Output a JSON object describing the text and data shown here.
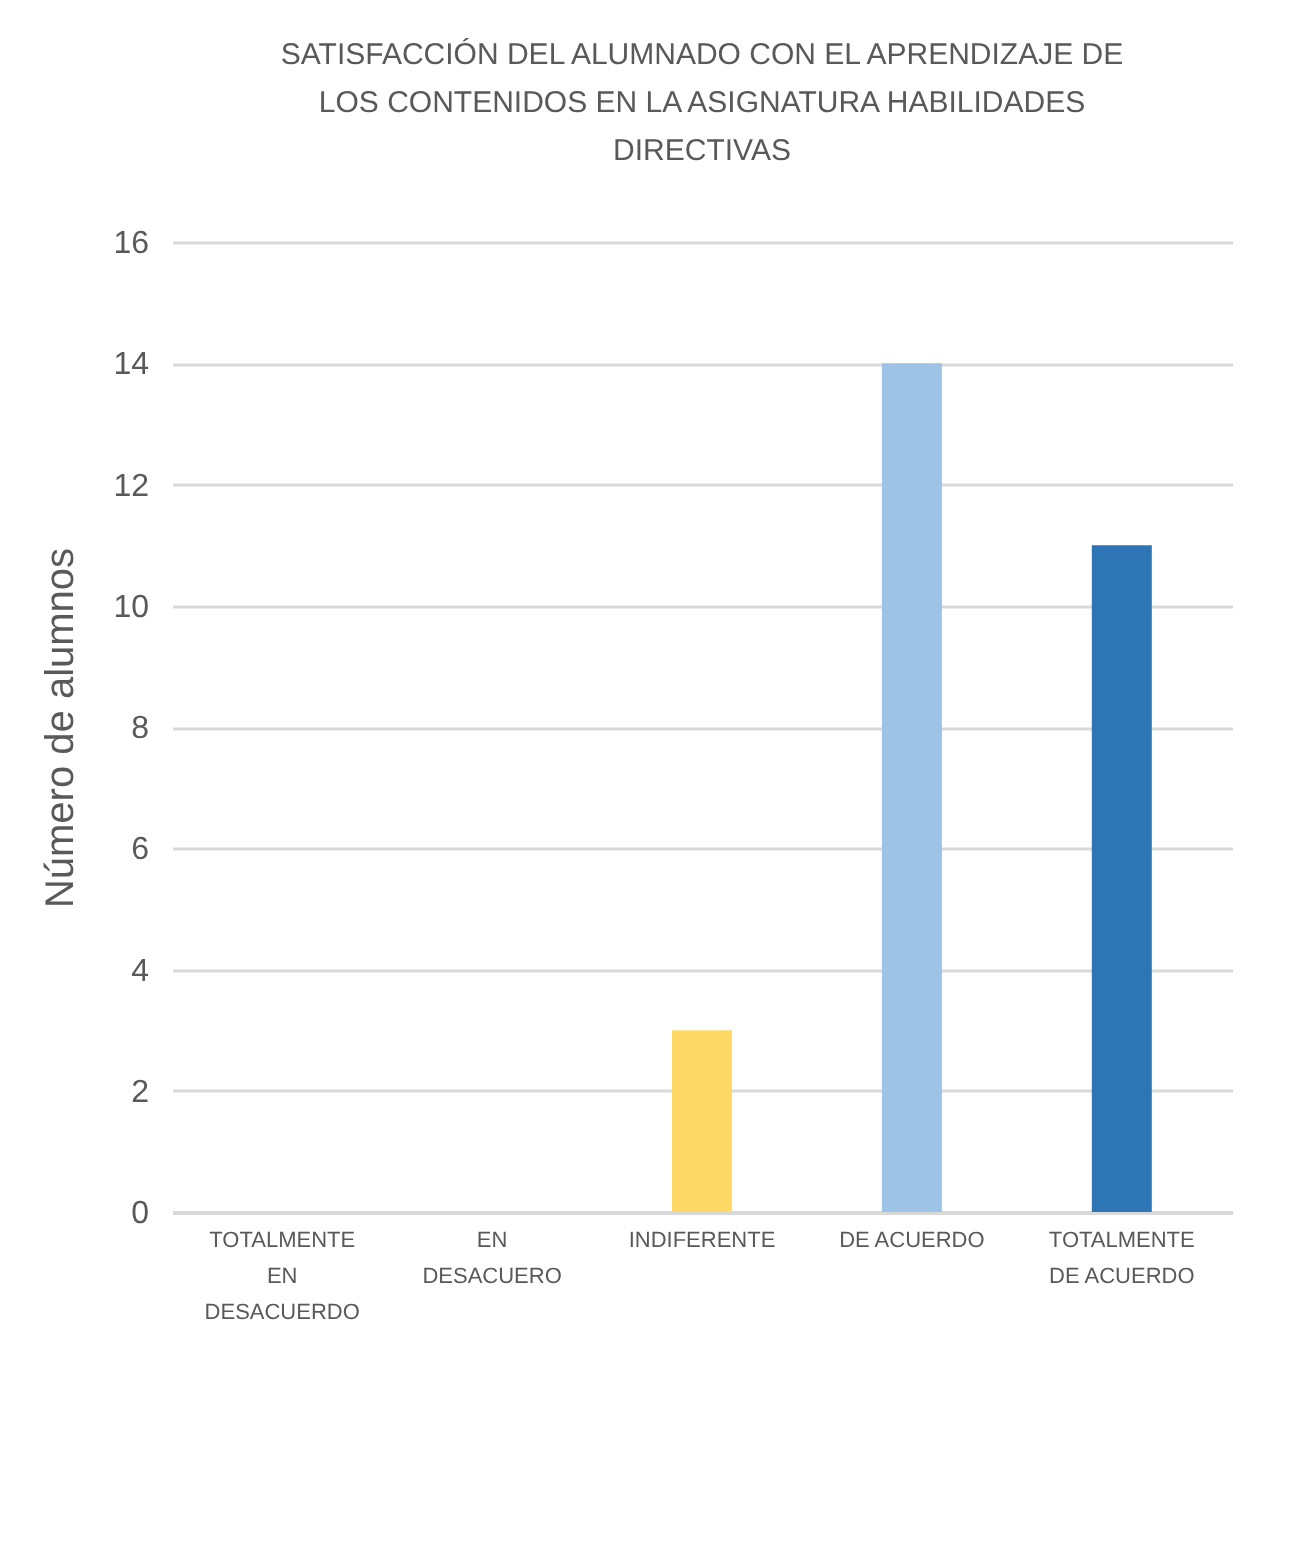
{
  "chart_data": {
    "type": "bar",
    "title": "SATISFACCIÓN DEL ALUMNADO CON EL APRENDIZAJE DE LOS CONTENIDOS EN LA ASIGNATURA HABILIDADES DIRECTIVAS",
    "ylabel": "Número de alumnos",
    "categories": [
      "TOTALMENTE EN DESACUERDO",
      "EN DESACUERO",
      "INDIFERENTE",
      "DE ACUERDO",
      "TOTALMENTE DE ACUERDO"
    ],
    "values": [
      0,
      0,
      3,
      14,
      11
    ],
    "colors": [
      "#4472c4",
      "#ed7d31",
      "#ffd966",
      "#9dc3e6",
      "#2e75b6"
    ],
    "ylim": [
      0,
      16
    ],
    "yticks": [
      0,
      2,
      4,
      6,
      8,
      10,
      12,
      14,
      16
    ],
    "grid": "y"
  }
}
